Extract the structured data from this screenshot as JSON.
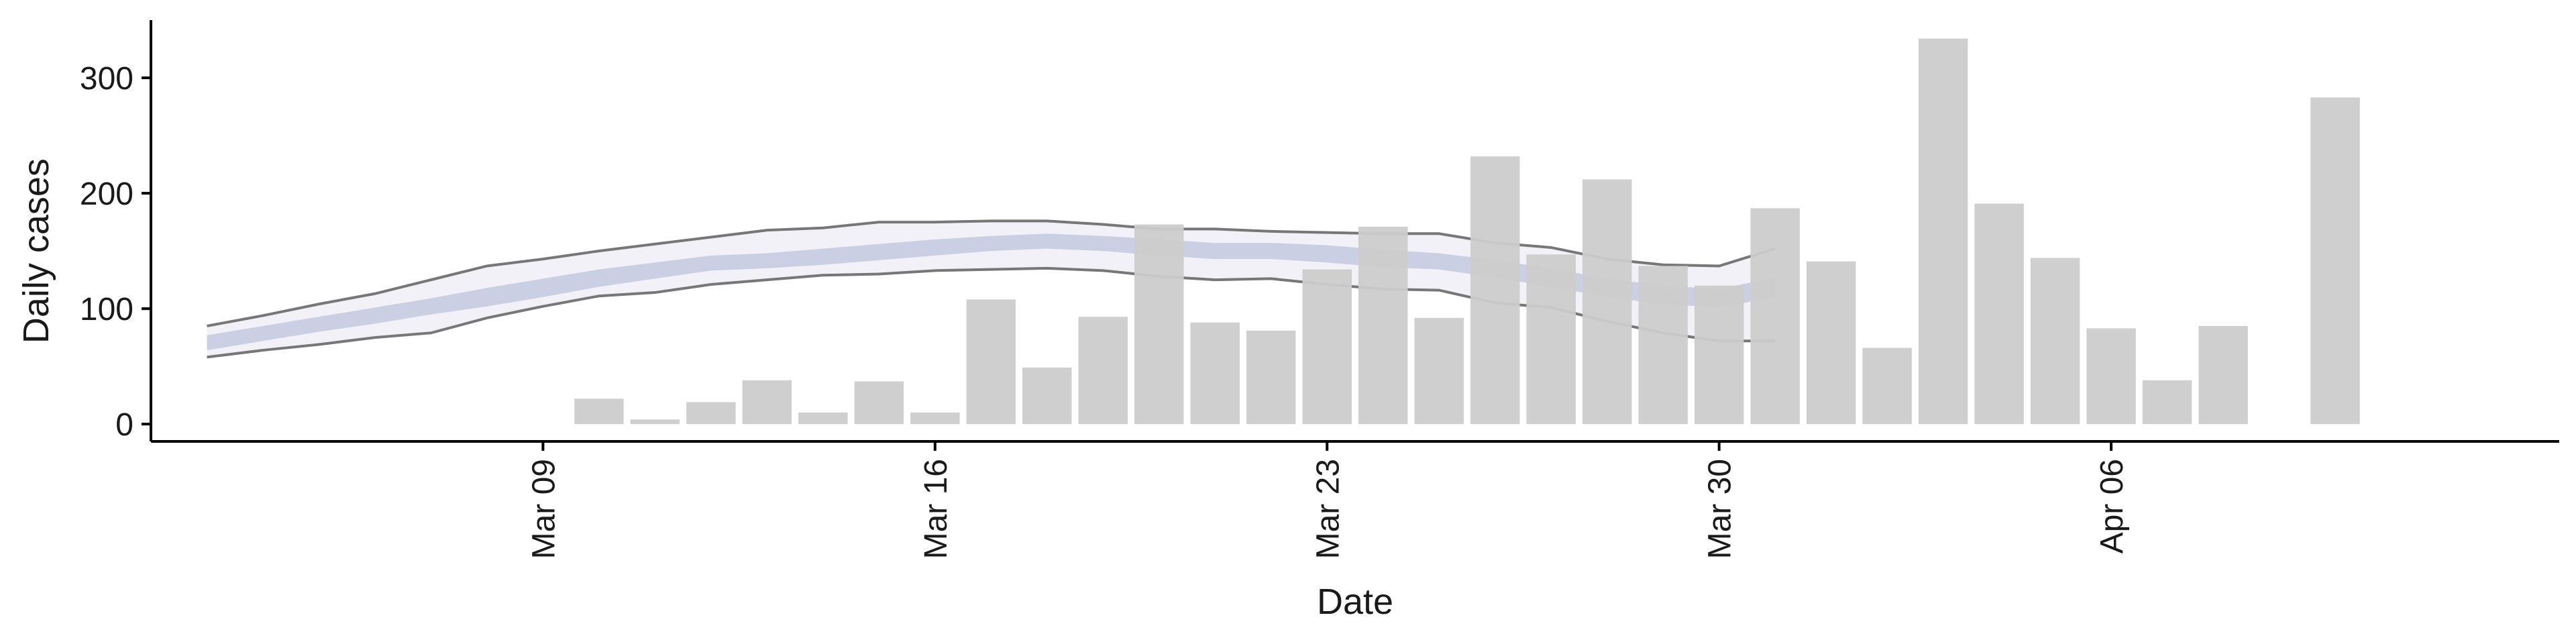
{
  "chart_data": {
    "type": "bar",
    "title": "",
    "xlabel": "Date",
    "ylabel": "Daily cases",
    "xlim": [
      "2020-03-02",
      "2020-04-14"
    ],
    "ylim": [
      -15,
      350
    ],
    "grid": false,
    "y_ticks": [
      0,
      100,
      200,
      300
    ],
    "x_ticks": [
      {
        "date": "2020-03-09",
        "label": "Mar 09"
      },
      {
        "date": "2020-03-16",
        "label": "Mar 16"
      },
      {
        "date": "2020-03-23",
        "label": "Mar 23"
      },
      {
        "date": "2020-03-30",
        "label": "Mar 30"
      },
      {
        "date": "2020-04-06",
        "label": "Apr 06"
      }
    ],
    "colors": {
      "bars": "#cccccc",
      "band_outer_fill": "#eeeff6",
      "band_outer_line": "#777777",
      "band_inner_fill": "#c5cbe0",
      "axis": "#000000"
    },
    "bars": [
      {
        "date": "2020-03-10",
        "value": 22
      },
      {
        "date": "2020-03-11",
        "value": 4
      },
      {
        "date": "2020-03-12",
        "value": 19
      },
      {
        "date": "2020-03-13",
        "value": 38
      },
      {
        "date": "2020-03-14",
        "value": 10
      },
      {
        "date": "2020-03-15",
        "value": 37
      },
      {
        "date": "2020-03-16",
        "value": 10
      },
      {
        "date": "2020-03-17",
        "value": 108
      },
      {
        "date": "2020-03-18",
        "value": 49
      },
      {
        "date": "2020-03-19",
        "value": 93
      },
      {
        "date": "2020-03-20",
        "value": 173
      },
      {
        "date": "2020-03-21",
        "value": 88
      },
      {
        "date": "2020-03-22",
        "value": 81
      },
      {
        "date": "2020-03-23",
        "value": 134
      },
      {
        "date": "2020-03-24",
        "value": 171
      },
      {
        "date": "2020-03-25",
        "value": 92
      },
      {
        "date": "2020-03-26",
        "value": 232
      },
      {
        "date": "2020-03-27",
        "value": 147
      },
      {
        "date": "2020-03-28",
        "value": 212
      },
      {
        "date": "2020-03-29",
        "value": 137
      },
      {
        "date": "2020-03-30",
        "value": 120
      },
      {
        "date": "2020-03-31",
        "value": 187
      },
      {
        "date": "2020-04-01",
        "value": 141
      },
      {
        "date": "2020-04-02",
        "value": 66
      },
      {
        "date": "2020-04-03",
        "value": 334
      },
      {
        "date": "2020-04-04",
        "value": 191
      },
      {
        "date": "2020-04-05",
        "value": 144
      },
      {
        "date": "2020-04-06",
        "value": 83
      },
      {
        "date": "2020-04-07",
        "value": 38
      },
      {
        "date": "2020-04-08",
        "value": 85
      },
      {
        "date": "2020-04-10",
        "value": 283
      }
    ],
    "band_outer": [
      {
        "date": "2020-03-03",
        "lower": 58,
        "upper": 85
      },
      {
        "date": "2020-03-04",
        "lower": 64,
        "upper": 94
      },
      {
        "date": "2020-03-05",
        "lower": 69,
        "upper": 104
      },
      {
        "date": "2020-03-06",
        "lower": 75,
        "upper": 113
      },
      {
        "date": "2020-03-07",
        "lower": 79,
        "upper": 125
      },
      {
        "date": "2020-03-08",
        "lower": 92,
        "upper": 137
      },
      {
        "date": "2020-03-09",
        "lower": 102,
        "upper": 143
      },
      {
        "date": "2020-03-10",
        "lower": 111,
        "upper": 150
      },
      {
        "date": "2020-03-11",
        "lower": 114,
        "upper": 156
      },
      {
        "date": "2020-03-12",
        "lower": 121,
        "upper": 162
      },
      {
        "date": "2020-03-13",
        "lower": 125,
        "upper": 168
      },
      {
        "date": "2020-03-14",
        "lower": 129,
        "upper": 170
      },
      {
        "date": "2020-03-15",
        "lower": 130,
        "upper": 175
      },
      {
        "date": "2020-03-16",
        "lower": 133,
        "upper": 175
      },
      {
        "date": "2020-03-17",
        "lower": 134,
        "upper": 176
      },
      {
        "date": "2020-03-18",
        "lower": 135,
        "upper": 176
      },
      {
        "date": "2020-03-19",
        "lower": 133,
        "upper": 173
      },
      {
        "date": "2020-03-20",
        "lower": 128,
        "upper": 169
      },
      {
        "date": "2020-03-21",
        "lower": 125,
        "upper": 169
      },
      {
        "date": "2020-03-22",
        "lower": 126,
        "upper": 167
      },
      {
        "date": "2020-03-23",
        "lower": 121,
        "upper": 166
      },
      {
        "date": "2020-03-24",
        "lower": 117,
        "upper": 165
      },
      {
        "date": "2020-03-25",
        "lower": 116,
        "upper": 165
      },
      {
        "date": "2020-03-26",
        "lower": 105,
        "upper": 157
      },
      {
        "date": "2020-03-27",
        "lower": 101,
        "upper": 153
      },
      {
        "date": "2020-03-28",
        "lower": 89,
        "upper": 143
      },
      {
        "date": "2020-03-29",
        "lower": 79,
        "upper": 138
      },
      {
        "date": "2020-03-30",
        "lower": 72,
        "upper": 137
      },
      {
        "date": "2020-03-31",
        "lower": 72,
        "upper": 152
      }
    ],
    "band_inner": [
      {
        "date": "2020-03-03",
        "lower": 64,
        "upper": 77
      },
      {
        "date": "2020-03-04",
        "lower": 72,
        "upper": 85
      },
      {
        "date": "2020-03-05",
        "lower": 80,
        "upper": 93
      },
      {
        "date": "2020-03-06",
        "lower": 87,
        "upper": 101
      },
      {
        "date": "2020-03-07",
        "lower": 95,
        "upper": 109
      },
      {
        "date": "2020-03-08",
        "lower": 102,
        "upper": 118
      },
      {
        "date": "2020-03-09",
        "lower": 110,
        "upper": 126
      },
      {
        "date": "2020-03-10",
        "lower": 119,
        "upper": 134
      },
      {
        "date": "2020-03-11",
        "lower": 126,
        "upper": 140
      },
      {
        "date": "2020-03-12",
        "lower": 133,
        "upper": 146
      },
      {
        "date": "2020-03-13",
        "lower": 135,
        "upper": 148
      },
      {
        "date": "2020-03-14",
        "lower": 138,
        "upper": 152
      },
      {
        "date": "2020-03-15",
        "lower": 142,
        "upper": 156
      },
      {
        "date": "2020-03-16",
        "lower": 146,
        "upper": 160
      },
      {
        "date": "2020-03-17",
        "lower": 150,
        "upper": 163
      },
      {
        "date": "2020-03-18",
        "lower": 152,
        "upper": 165
      },
      {
        "date": "2020-03-19",
        "lower": 150,
        "upper": 163
      },
      {
        "date": "2020-03-20",
        "lower": 146,
        "upper": 160
      },
      {
        "date": "2020-03-21",
        "lower": 143,
        "upper": 157
      },
      {
        "date": "2020-03-22",
        "lower": 143,
        "upper": 157
      },
      {
        "date": "2020-03-23",
        "lower": 140,
        "upper": 155
      },
      {
        "date": "2020-03-24",
        "lower": 136,
        "upper": 151
      },
      {
        "date": "2020-03-25",
        "lower": 134,
        "upper": 148
      },
      {
        "date": "2020-03-26",
        "lower": 127,
        "upper": 142
      },
      {
        "date": "2020-03-27",
        "lower": 119,
        "upper": 135
      },
      {
        "date": "2020-03-28",
        "lower": 110,
        "upper": 126
      },
      {
        "date": "2020-03-29",
        "lower": 104,
        "upper": 120
      },
      {
        "date": "2020-03-30",
        "lower": 101,
        "upper": 117
      },
      {
        "date": "2020-03-31",
        "lower": 110,
        "upper": 127
      }
    ]
  }
}
